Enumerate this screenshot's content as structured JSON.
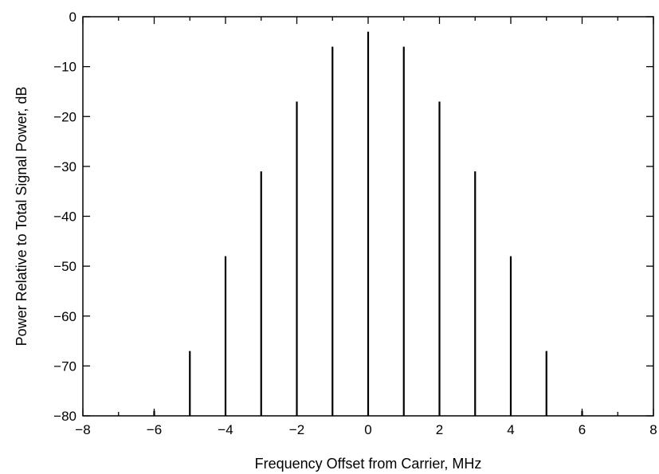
{
  "chart_data": {
    "type": "bar",
    "title": "",
    "xlabel": "Frequency Offset from Carrier, MHz",
    "ylabel": "Power Relative to Total Signal Power, dB",
    "xlim": [
      -8,
      8
    ],
    "ylim": [
      -80,
      0
    ],
    "xticks": [
      -8,
      -6,
      -4,
      -2,
      0,
      2,
      4,
      6,
      8
    ],
    "yticks": [
      0,
      -10,
      -20,
      -30,
      -40,
      -50,
      -60,
      -70,
      -80
    ],
    "x_minor_step": 1,
    "grid": false,
    "legend": "none",
    "series": [
      {
        "x": [
          -6,
          -5,
          -4,
          -3,
          -2,
          -1,
          0,
          1,
          2,
          3,
          4,
          5,
          6
        ],
        "values": [
          -79,
          -67,
          -48,
          -31,
          -17,
          -6,
          -3,
          -6,
          -17,
          -31,
          -48,
          -67,
          -79
        ]
      }
    ]
  }
}
